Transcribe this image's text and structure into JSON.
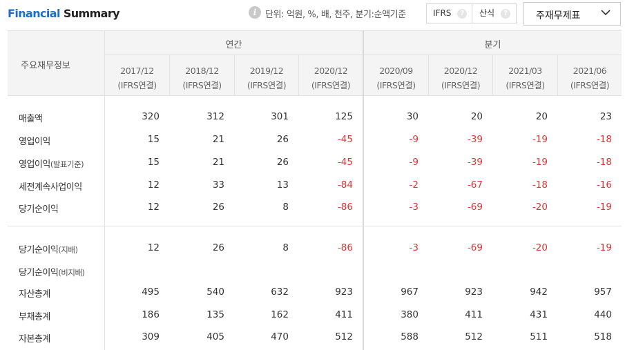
{
  "header": {
    "title_accent": "Financial",
    "title_rest": " Summary",
    "info_icon_glyph": "i",
    "unit_text": "단위: 억원, %, 배, 천주, 분기:순액기준",
    "ifrs_label": "IFRS",
    "calc_label": "산식",
    "help_icon_glyph": "?",
    "statement_select_value": "주재무제표"
  },
  "table": {
    "corner_label": "주요재무정보",
    "group_annual": "연간",
    "group_quarter": "분기",
    "periods": [
      {
        "date": "2017/12",
        "basis": "(IFRS연결)"
      },
      {
        "date": "2018/12",
        "basis": "(IFRS연결)"
      },
      {
        "date": "2019/12",
        "basis": "(IFRS연결)"
      },
      {
        "date": "2020/12",
        "basis": "(IFRS연결)"
      },
      {
        "date": "2020/09",
        "basis": "(IFRS연결)"
      },
      {
        "date": "2020/12",
        "basis": "(IFRS연결)"
      },
      {
        "date": "2021/03",
        "basis": "(IFRS연결)"
      },
      {
        "date": "2021/06",
        "basis": "(IFRS연결)"
      }
    ],
    "rows": [
      {
        "label": "매출액",
        "label_sub": "",
        "values": [
          "320",
          "312",
          "301",
          "125",
          "30",
          "20",
          "20",
          "23"
        ]
      },
      {
        "label": "영업이익",
        "label_sub": "",
        "values": [
          "15",
          "21",
          "26",
          "-45",
          "-9",
          "-39",
          "-19",
          "-18"
        ]
      },
      {
        "label": "영업이익",
        "label_sub": "(발표기준)",
        "values": [
          "15",
          "21",
          "26",
          "-45",
          "-9",
          "-39",
          "-19",
          "-18"
        ]
      },
      {
        "label": "세전계속사업이익",
        "label_sub": "",
        "values": [
          "12",
          "33",
          "13",
          "-84",
          "-2",
          "-67",
          "-18",
          "-16"
        ]
      },
      {
        "label": "당기순이익",
        "label_sub": "",
        "values": [
          "12",
          "26",
          "8",
          "-86",
          "-3",
          "-69",
          "-20",
          "-19"
        ]
      },
      {
        "label": "당기순이익",
        "label_sub": "(지배)",
        "values": [
          "12",
          "26",
          "8",
          "-86",
          "-3",
          "-69",
          "-20",
          "-19"
        ]
      },
      {
        "label": "당기순이익",
        "label_sub": "(비지배)",
        "values": [
          "",
          "",
          "",
          "",
          "",
          "",
          "",
          ""
        ]
      },
      {
        "label": "자산총계",
        "label_sub": "",
        "values": [
          "495",
          "540",
          "632",
          "923",
          "967",
          "923",
          "942",
          "957"
        ]
      },
      {
        "label": "부채총계",
        "label_sub": "",
        "values": [
          "186",
          "135",
          "162",
          "411",
          "380",
          "411",
          "431",
          "440"
        ]
      },
      {
        "label": "자본총계",
        "label_sub": "",
        "values": [
          "309",
          "405",
          "470",
          "512",
          "588",
          "512",
          "511",
          "518"
        ]
      }
    ]
  },
  "colors": {
    "accent": "#1e6ec8",
    "negative": "#e03333",
    "header_bg": "#f4f4f4"
  }
}
